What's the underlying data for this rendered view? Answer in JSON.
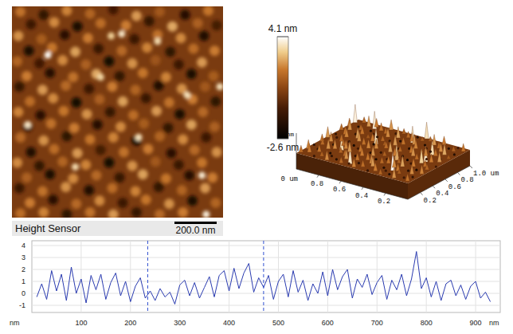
{
  "chart_data": [
    {
      "type": "heatmap",
      "title": "Height Sensor",
      "xlim": [
        0,
        1000
      ],
      "ylim": [
        0,
        1000
      ],
      "tick_labels": false,
      "background": 0.4,
      "grains": [
        [
          40,
          25,
          1.8
        ],
        [
          150,
          40,
          -1.2
        ],
        [
          260,
          20,
          2.1
        ],
        [
          370,
          35,
          1.5
        ],
        [
          480,
          15,
          -0.8
        ],
        [
          590,
          45,
          2.4
        ],
        [
          700,
          25,
          1.2
        ],
        [
          820,
          40,
          -1.5
        ],
        [
          930,
          20,
          1.9
        ],
        [
          90,
          85,
          -0.9
        ],
        [
          200,
          75,
          2.2
        ],
        [
          310,
          95,
          -1.8
        ],
        [
          420,
          80,
          1.7
        ],
        [
          540,
          90,
          2.0
        ],
        [
          650,
          70,
          -1.1
        ],
        [
          760,
          95,
          2.6
        ],
        [
          880,
          80,
          1.4
        ],
        [
          970,
          90,
          -0.7
        ],
        [
          30,
          140,
          2.3
        ],
        [
          140,
          155,
          1.3
        ],
        [
          250,
          135,
          -1.4
        ],
        [
          360,
          150,
          2.0
        ],
        [
          470,
          140,
          3.2
        ],
        [
          580,
          155,
          -0.9
        ],
        [
          690,
          135,
          1.8
        ],
        [
          800,
          150,
          2.2
        ],
        [
          910,
          140,
          -1.6
        ],
        [
          80,
          210,
          -1.7
        ],
        [
          190,
          195,
          1.9
        ],
        [
          300,
          215,
          2.5
        ],
        [
          410,
          200,
          -1.0
        ],
        [
          520,
          210,
          1.6
        ],
        [
          640,
          195,
          2.1
        ],
        [
          750,
          215,
          -1.3
        ],
        [
          860,
          200,
          1.7
        ],
        [
          960,
          210,
          2.0
        ],
        [
          25,
          260,
          1.5
        ],
        [
          130,
          270,
          -0.8
        ],
        [
          240,
          255,
          2.2
        ],
        [
          350,
          275,
          1.4
        ],
        [
          460,
          260,
          -2.0
        ],
        [
          570,
          270,
          2.3
        ],
        [
          680,
          255,
          1.1
        ],
        [
          790,
          275,
          -0.9
        ],
        [
          900,
          265,
          2.4
        ],
        [
          70,
          330,
          2.0
        ],
        [
          180,
          315,
          -1.5
        ],
        [
          290,
          335,
          1.8
        ],
        [
          400,
          320,
          2.6
        ],
        [
          510,
          330,
          -1.2
        ],
        [
          620,
          315,
          1.9
        ],
        [
          730,
          335,
          2.1
        ],
        [
          850,
          320,
          -1.8
        ],
        [
          955,
          330,
          1.3
        ],
        [
          35,
          380,
          -1.1
        ],
        [
          145,
          395,
          2.4
        ],
        [
          255,
          375,
          1.6
        ],
        [
          365,
          390,
          -0.9
        ],
        [
          475,
          380,
          2.0
        ],
        [
          585,
          395,
          1.5
        ],
        [
          695,
          375,
          -1.6
        ],
        [
          805,
          390,
          2.3
        ],
        [
          915,
          380,
          1.2
        ],
        [
          85,
          450,
          1.7
        ],
        [
          195,
          435,
          2.2
        ],
        [
          305,
          455,
          -1.9
        ],
        [
          415,
          440,
          1.4
        ],
        [
          525,
          450,
          2.5
        ],
        [
          635,
          435,
          -1.0
        ],
        [
          745,
          455,
          1.8
        ],
        [
          855,
          440,
          2.0
        ],
        [
          965,
          450,
          -1.3
        ],
        [
          30,
          500,
          2.1
        ],
        [
          135,
          515,
          -1.4
        ],
        [
          245,
          495,
          1.9
        ],
        [
          355,
          510,
          2.3
        ],
        [
          465,
          500,
          -1.1
        ],
        [
          575,
          515,
          1.7
        ],
        [
          685,
          495,
          2.4
        ],
        [
          795,
          510,
          -1.7
        ],
        [
          905,
          500,
          1.6
        ],
        [
          75,
          570,
          -0.8
        ],
        [
          185,
          555,
          1.8
        ],
        [
          295,
          575,
          2.0
        ],
        [
          405,
          560,
          -1.5
        ],
        [
          515,
          570,
          2.2
        ],
        [
          625,
          555,
          1.3
        ],
        [
          740,
          575,
          -1.2
        ],
        [
          850,
          560,
          2.5
        ],
        [
          960,
          570,
          1.4
        ],
        [
          40,
          620,
          1.6
        ],
        [
          150,
          635,
          2.3
        ],
        [
          260,
          615,
          -1.3
        ],
        [
          370,
          630,
          1.9
        ],
        [
          480,
          620,
          2.1
        ],
        [
          590,
          635,
          -1.8
        ],
        [
          700,
          615,
          1.5
        ],
        [
          810,
          630,
          2.2
        ],
        [
          920,
          620,
          -0.9
        ],
        [
          90,
          690,
          -1.6
        ],
        [
          200,
          675,
          1.7
        ],
        [
          310,
          695,
          2.4
        ],
        [
          420,
          680,
          -0.7
        ],
        [
          530,
          690,
          1.8
        ],
        [
          645,
          675,
          2.0
        ],
        [
          755,
          695,
          -1.4
        ],
        [
          865,
          680,
          1.6
        ],
        [
          970,
          690,
          2.3
        ],
        [
          25,
          740,
          2.2
        ],
        [
          130,
          755,
          -1.2
        ],
        [
          240,
          735,
          1.5
        ],
        [
          350,
          750,
          2.1
        ],
        [
          460,
          740,
          -1.9
        ],
        [
          570,
          755,
          2.3
        ],
        [
          680,
          735,
          1.2
        ],
        [
          790,
          750,
          -1.0
        ],
        [
          900,
          740,
          1.9
        ],
        [
          70,
          810,
          1.4
        ],
        [
          180,
          795,
          -1.7
        ],
        [
          290,
          815,
          2.2
        ],
        [
          400,
          800,
          1.6
        ],
        [
          510,
          810,
          -1.1
        ],
        [
          620,
          795,
          2.5
        ],
        [
          730,
          815,
          1.9
        ],
        [
          840,
          800,
          -1.5
        ],
        [
          950,
          810,
          2.0
        ],
        [
          35,
          860,
          -1.0
        ],
        [
          145,
          875,
          1.8
        ],
        [
          255,
          855,
          2.3
        ],
        [
          365,
          870,
          -1.6
        ],
        [
          475,
          860,
          1.7
        ],
        [
          585,
          875,
          2.1
        ],
        [
          695,
          855,
          -1.2
        ],
        [
          805,
          870,
          1.5
        ],
        [
          915,
          860,
          2.4
        ],
        [
          85,
          930,
          2.0
        ],
        [
          195,
          915,
          -1.4
        ],
        [
          305,
          935,
          1.6
        ],
        [
          415,
          920,
          2.2
        ],
        [
          525,
          930,
          -0.9
        ],
        [
          635,
          915,
          1.9
        ],
        [
          745,
          935,
          2.3
        ],
        [
          855,
          920,
          -1.7
        ],
        [
          965,
          930,
          1.5
        ],
        [
          40,
          980,
          1.7
        ],
        [
          150,
          975,
          2.1
        ],
        [
          260,
          985,
          -1.3
        ],
        [
          370,
          975,
          1.8
        ],
        [
          480,
          985,
          2.4
        ],
        [
          590,
          975,
          -1.1
        ],
        [
          700,
          985,
          1.6
        ],
        [
          810,
          975,
          2.0
        ],
        [
          920,
          985,
          3.8
        ],
        [
          170,
          230,
          4.0
        ],
        [
          520,
          130,
          3.6
        ],
        [
          985,
          380,
          3.5
        ],
        [
          690,
          165,
          3.4
        ],
        [
          420,
          335,
          3.3
        ],
        [
          75,
          560,
          3.6
        ],
        [
          900,
          800,
          3.7
        ],
        [
          600,
          620,
          3.5
        ],
        [
          300,
          760,
          3.4
        ],
        [
          830,
          420,
          3.5
        ]
      ],
      "colorbar": {
        "range": [
          -2.6,
          4.1
        ],
        "ticks": [
          {
            "value": 4.1,
            "label": "4.1 nm"
          },
          {
            "value": -2.6,
            "label": "-2.6 nm"
          }
        ]
      },
      "scale_bar": {
        "value": 200,
        "label": "200.0 nm"
      }
    },
    {
      "type": "surface3d",
      "xlim": [
        0,
        1.0
      ],
      "ylim": [
        0,
        1.0
      ],
      "zlim": [
        -2.6,
        4.1
      ],
      "xticks": [
        0.2,
        0.4,
        0.6,
        0.8,
        {
          "value": 1.0,
          "label": "1.0 um"
        }
      ],
      "yticks": [
        0.8,
        0.6,
        0.4,
        0.2
      ],
      "origin_label": "0 um",
      "zlabel": "nm"
    },
    {
      "type": "line",
      "xlabel": "nm",
      "ylabel": "nm",
      "grid": true,
      "xlim": [
        0,
        950
      ],
      "ylim": [
        -1.6,
        4.4
      ],
      "xticks": [
        100,
        200,
        300,
        400,
        500,
        600,
        700,
        800,
        900
      ],
      "yticks": [
        -1,
        0,
        1,
        2,
        3,
        4
      ],
      "cursors": [
        235,
        470
      ],
      "x": [
        10,
        20,
        30,
        40,
        50,
        60,
        70,
        80,
        90,
        100,
        110,
        120,
        130,
        140,
        150,
        160,
        170,
        180,
        190,
        200,
        210,
        220,
        230,
        240,
        250,
        260,
        270,
        280,
        290,
        300,
        310,
        320,
        330,
        340,
        350,
        360,
        370,
        380,
        390,
        400,
        410,
        420,
        430,
        440,
        450,
        460,
        470,
        480,
        490,
        500,
        510,
        520,
        530,
        540,
        550,
        560,
        570,
        580,
        590,
        600,
        610,
        620,
        630,
        640,
        650,
        660,
        670,
        680,
        690,
        700,
        710,
        720,
        730,
        740,
        750,
        760,
        770,
        780,
        790,
        800,
        810,
        820,
        830,
        840,
        850,
        860,
        870,
        880,
        890,
        900,
        910,
        920,
        930
      ],
      "series": [
        {
          "color": "#2a3bb0",
          "values": [
            -0.3,
            0.8,
            -0.5,
            1.9,
            0.2,
            1.6,
            -0.6,
            2.2,
            0.0,
            1.2,
            -0.8,
            1.5,
            0.3,
            1.6,
            -0.5,
            0.9,
            1.7,
            -0.2,
            1.0,
            -0.7,
            0.6,
            1.3,
            -0.4,
            0.2,
            -0.6,
            0.4,
            -0.3,
            0.1,
            -0.9,
            0.7,
            1.1,
            -0.2,
            0.9,
            -0.4,
            0.5,
            1.4,
            -0.3,
            1.5,
            1.9,
            0.2,
            2.1,
            0.4,
            1.7,
            2.5,
            0.1,
            1.3,
            0.5,
            1.5,
            -0.5,
            1.0,
            1.6,
            -0.3,
            1.9,
            0.1,
            1.1,
            -0.6,
            0.8,
            0.0,
            1.8,
            -0.2,
            2.0,
            0.3,
            1.4,
            2.0,
            -0.4,
            1.2,
            0.5,
            1.6,
            -0.1,
            0.9,
            1.5,
            -0.5,
            1.1,
            0.3,
            1.6,
            -0.2,
            1.2,
            3.5,
            0.4,
            1.3,
            -0.3,
            1.0,
            -0.6,
            0.8,
            1.1,
            -0.2,
            0.7,
            -0.5,
            0.6,
            1.0,
            -0.4,
            0.1,
            -0.7
          ]
        }
      ]
    }
  ]
}
